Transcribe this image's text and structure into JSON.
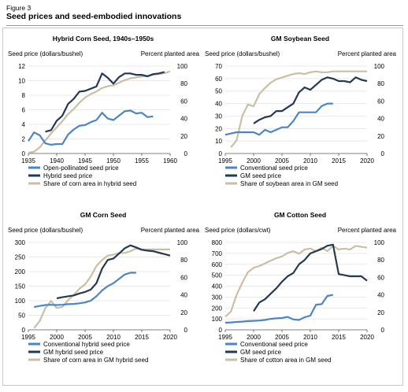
{
  "figure": {
    "label": "Figure 3",
    "title": "Seed prices and seed-embodied innovations"
  },
  "colors": {
    "blue": "#4a86c5",
    "navy": "#243a52",
    "tan": "#c9bfa5"
  },
  "chart_data": [
    {
      "type": "line",
      "title": "Hybrid Corn Seed, 1940s–1950s",
      "ylabel_left": "Seed price (dollars/bushel)",
      "ylabel_right": "Percent planted area",
      "xlim": [
        1935,
        1960
      ],
      "xticks": [
        1935,
        1940,
        1945,
        1950,
        1955,
        1960
      ],
      "ylim_left": [
        0,
        12
      ],
      "yticks_left": [
        0,
        2,
        4,
        6,
        8,
        10,
        12
      ],
      "ylim_right": [
        0,
        100
      ],
      "yticks_right": [
        0,
        20,
        40,
        60,
        80,
        100
      ],
      "series": [
        {
          "name": "Open-pollinated seed price",
          "color": "blue",
          "axis": "left",
          "x": [
            1935,
            1936,
            1937,
            1938,
            1939,
            1940,
            1941,
            1942,
            1943,
            1944,
            1945,
            1946,
            1947,
            1948,
            1949,
            1950,
            1951,
            1952,
            1953,
            1954,
            1955,
            1956,
            1957
          ],
          "y": [
            1.7,
            2.9,
            2.5,
            1.4,
            1.2,
            1.3,
            1.3,
            2.6,
            3.3,
            3.8,
            3.9,
            4.3,
            4.6,
            5.6,
            4.8,
            4.6,
            5.2,
            5.8,
            5.9,
            5.5,
            5.6,
            5.0,
            5.1
          ]
        },
        {
          "name": "Hybrid seed price",
          "color": "navy",
          "axis": "left",
          "x": [
            1938,
            1939,
            1940,
            1941,
            1942,
            1943,
            1944,
            1945,
            1946,
            1947,
            1948,
            1949,
            1950,
            1951,
            1952,
            1953,
            1954,
            1955,
            1956,
            1957,
            1958,
            1959
          ],
          "y": [
            3.0,
            3.2,
            4.5,
            5.2,
            6.8,
            7.5,
            8.5,
            8.6,
            8.9,
            9.2,
            11.0,
            10.4,
            9.6,
            10.5,
            11.0,
            11.0,
            10.8,
            10.8,
            10.6,
            10.9,
            11.0,
            11.2
          ]
        },
        {
          "name": "Share of corn area in hybrid seed",
          "color": "tan",
          "axis": "right",
          "x": [
            1935,
            1936,
            1937,
            1938,
            1939,
            1940,
            1941,
            1942,
            1943,
            1944,
            1945,
            1946,
            1947,
            1948,
            1949,
            1950,
            1951,
            1952,
            1953,
            1954,
            1955,
            1956,
            1957,
            1958,
            1959,
            1960
          ],
          "y": [
            1,
            2,
            7,
            15,
            23,
            30,
            37,
            45,
            51,
            58,
            64,
            68,
            71,
            75,
            77,
            78,
            81,
            84,
            86,
            87,
            88,
            89,
            90,
            91,
            92,
            94
          ]
        }
      ],
      "legend_position": "bottom"
    },
    {
      "type": "line",
      "title": "GM Soybean Seed",
      "ylabel_left": "Seed price (dollars/bushel)",
      "ylabel_right": "Percent planted area",
      "xlim": [
        1995,
        2020
      ],
      "xticks": [
        1995,
        2000,
        2005,
        2010,
        2015,
        2020
      ],
      "ylim_left": [
        0,
        70
      ],
      "yticks_left": [
        0,
        10,
        20,
        30,
        40,
        50,
        60,
        70
      ],
      "ylim_right": [
        0,
        100
      ],
      "yticks_right": [
        0,
        20,
        40,
        60,
        80,
        100
      ],
      "series": [
        {
          "name": "Conventional seed price",
          "color": "blue",
          "axis": "left",
          "x": [
            1995,
            1996,
            1997,
            1998,
            1999,
            2000,
            2001,
            2002,
            2003,
            2004,
            2005,
            2006,
            2007,
            2008,
            2009,
            2010,
            2011,
            2012,
            2013,
            2014
          ],
          "y": [
            15,
            16,
            17,
            17,
            17,
            17,
            15,
            19,
            17,
            19,
            21,
            21,
            26,
            33,
            33,
            33,
            33,
            38,
            40,
            40
          ]
        },
        {
          "name": "GM seed price",
          "color": "navy",
          "axis": "left",
          "x": [
            2000,
            2001,
            2002,
            2003,
            2004,
            2005,
            2006,
            2007,
            2008,
            2009,
            2010,
            2011,
            2012,
            2013,
            2014,
            2015,
            2016,
            2017,
            2018,
            2019,
            2020
          ],
          "y": [
            24,
            27,
            29,
            30,
            34,
            34,
            37,
            40,
            49,
            53,
            51,
            55,
            59,
            61,
            60,
            58,
            58,
            57,
            61,
            59,
            58
          ]
        },
        {
          "name": "Share of soybean area in GM seed",
          "color": "tan",
          "axis": "right",
          "x": [
            1996,
            1997,
            1998,
            1999,
            2000,
            2001,
            2002,
            2003,
            2004,
            2005,
            2006,
            2007,
            2008,
            2009,
            2010,
            2011,
            2012,
            2013,
            2014,
            2015,
            2016,
            2017,
            2018,
            2019,
            2020
          ],
          "y": [
            7,
            15,
            43,
            56,
            54,
            68,
            75,
            81,
            85,
            87,
            89,
            91,
            92,
            91,
            93,
            94,
            93,
            93,
            94,
            94,
            94,
            94,
            94,
            94,
            94
          ]
        }
      ],
      "legend_position": "bottom"
    },
    {
      "type": "line",
      "title": "GM Corn Seed",
      "ylabel_left": "Seed price (dollars/bushel)",
      "ylabel_right": "Percent planted area",
      "xlim": [
        1995,
        2020
      ],
      "xticks": [
        1995,
        2000,
        2005,
        2010,
        2015,
        2020
      ],
      "ylim_left": [
        0,
        300
      ],
      "yticks_left": [
        0,
        50,
        100,
        150,
        200,
        250,
        300
      ],
      "ylim_right": [
        0,
        100
      ],
      "yticks_right": [
        0,
        20,
        40,
        60,
        80,
        100
      ],
      "series": [
        {
          "name": "Conventional hybrid seed price",
          "color": "blue",
          "axis": "left",
          "x": [
            1996,
            1997,
            1998,
            1999,
            2000,
            2001,
            2002,
            2003,
            2004,
            2005,
            2006,
            2007,
            2008,
            2009,
            2010,
            2011,
            2012,
            2013,
            2014
          ],
          "y": [
            78,
            82,
            85,
            86,
            85,
            86,
            88,
            89,
            91,
            94,
            100,
            115,
            135,
            150,
            160,
            175,
            190,
            196,
            196
          ]
        },
        {
          "name": "GM hybrid seed price",
          "color": "navy",
          "axis": "left",
          "x": [
            2000,
            2001,
            2002,
            2003,
            2004,
            2005,
            2006,
            2007,
            2008,
            2009,
            2010,
            2011,
            2012,
            2013,
            2014,
            2015,
            2016,
            2017,
            2018,
            2019,
            2020
          ],
          "y": [
            108,
            112,
            115,
            118,
            125,
            130,
            138,
            160,
            210,
            240,
            245,
            262,
            280,
            290,
            283,
            275,
            272,
            270,
            265,
            260,
            255
          ]
        },
        {
          "name": "Share of corn area in GM hybrid seed",
          "color": "tan",
          "axis": "right",
          "x": [
            1996,
            1997,
            1998,
            1999,
            2000,
            2001,
            2002,
            2003,
            2004,
            2005,
            2006,
            2007,
            2008,
            2009,
            2010,
            2011,
            2012,
            2013,
            2014,
            2015,
            2016,
            2017,
            2018,
            2019,
            2020
          ],
          "y": [
            2,
            10,
            25,
            33,
            25,
            26,
            34,
            40,
            47,
            52,
            61,
            73,
            80,
            85,
            86,
            88,
            88,
            90,
            93,
            92,
            92,
            92,
            92,
            92,
            92
          ]
        }
      ],
      "legend_position": "bottom"
    },
    {
      "type": "line",
      "title": "GM Cotton Seed",
      "ylabel_left": "Seed price (dollars/cwt)",
      "ylabel_right": "Percent planted area",
      "xlim": [
        1995,
        2020
      ],
      "xticks": [
        1995,
        2000,
        2005,
        2010,
        2015,
        2020
      ],
      "ylim_left": [
        0,
        800
      ],
      "yticks_left": [
        0,
        100,
        200,
        300,
        400,
        500,
        600,
        700,
        800
      ],
      "ylim_right": [
        0,
        100
      ],
      "yticks_right": [
        0,
        20,
        40,
        60,
        80,
        100
      ],
      "series": [
        {
          "name": "Conventional seed price",
          "color": "blue",
          "axis": "left",
          "x": [
            1995,
            1996,
            1997,
            1998,
            1999,
            2000,
            2001,
            2002,
            2003,
            2004,
            2005,
            2006,
            2007,
            2008,
            2009,
            2010,
            2011,
            2012,
            2013,
            2014
          ],
          "y": [
            65,
            68,
            72,
            75,
            80,
            82,
            85,
            90,
            100,
            105,
            108,
            118,
            95,
            90,
            115,
            130,
            230,
            235,
            310,
            320
          ]
        },
        {
          "name": "GM seed price",
          "color": "navy",
          "axis": "left",
          "x": [
            2000,
            2001,
            2002,
            2003,
            2004,
            2005,
            2006,
            2007,
            2008,
            2009,
            2010,
            2011,
            2012,
            2013,
            2014,
            2015,
            2016,
            2017,
            2018,
            2019,
            2020
          ],
          "y": [
            170,
            250,
            280,
            330,
            380,
            440,
            490,
            520,
            600,
            640,
            700,
            720,
            740,
            770,
            780,
            510,
            500,
            490,
            490,
            490,
            450
          ]
        },
        {
          "name": "Share of cotton area in GM seed",
          "color": "tan",
          "axis": "right",
          "x": [
            1995,
            1996,
            1997,
            1998,
            1999,
            2000,
            2001,
            2002,
            2003,
            2004,
            2005,
            2006,
            2007,
            2008,
            2009,
            2010,
            2011,
            2012,
            2013,
            2014,
            2015,
            2016,
            2017,
            2018,
            2019,
            2020
          ],
          "y": [
            15,
            21,
            40,
            54,
            66,
            71,
            73,
            76,
            79,
            82,
            84,
            88,
            90,
            87,
            92,
            93,
            90,
            94,
            90,
            96,
            92,
            93,
            92,
            96,
            95,
            94
          ]
        }
      ],
      "legend_position": "bottom"
    }
  ]
}
